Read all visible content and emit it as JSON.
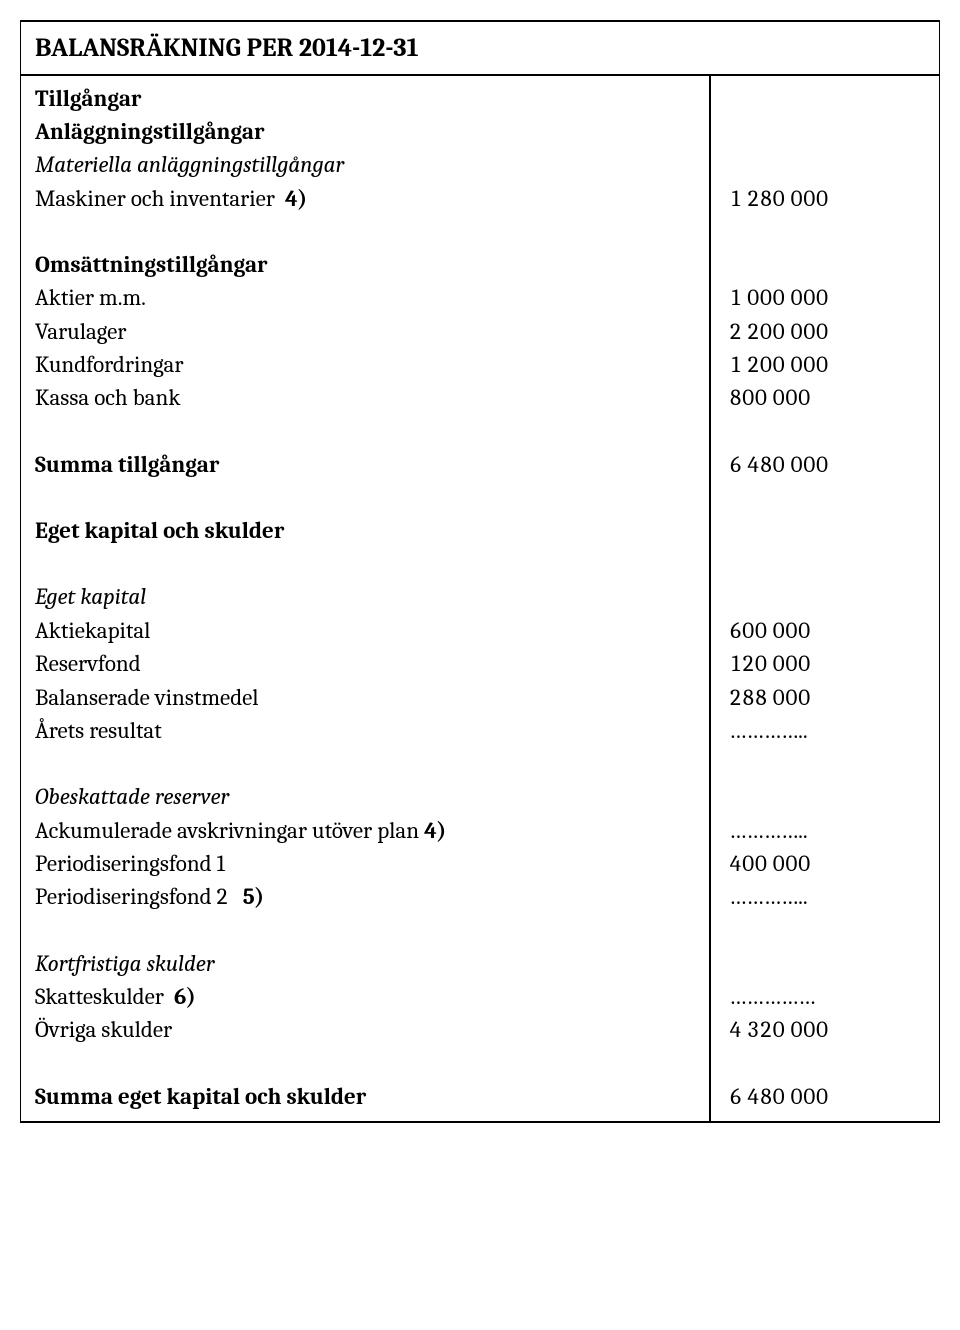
{
  "title": "BALANSRÄKNING PER 2014-12-31",
  "sections": {
    "tillgangar_h": "Tillgångar",
    "anl_h": "Anläggningstillgångar",
    "mat_anl_h": "Materiella anläggningstillgångar",
    "maskiner_label": "Maskiner och inventarier",
    "maskiner_note": "4)",
    "maskiner_val": "1 280 000",
    "oms_h": "Omsättningstillgångar",
    "aktier_label": "Aktier m.m.",
    "aktier_val": "1 000 000",
    "varulager_label": "Varulager",
    "varulager_val": "2 200 000",
    "kundf_label": "Kundfordringar",
    "kundf_val": "1 200 000",
    "kassa_label": "Kassa och bank",
    "kassa_val": "800 000",
    "summa_t_label": "Summa tillgångar",
    "summa_t_val": "6 480 000",
    "ek_sk_h": "Eget kapital och skulder",
    "ek_h": "Eget kapital",
    "aktiekap_label": "Aktiekapital",
    "aktiekap_val": "600 000",
    "reservf_label": "Reservfond",
    "reservf_val": "120 000",
    "balv_label": "Balanserade vinstmedel",
    "balv_val": "288 000",
    "arets_label": "Årets resultat",
    "arets_val": "…………..",
    "obesk_h": "Obeskattade reserver",
    "ack_label": "Ackumulerade avskrivningar utöver plan",
    "ack_note": "4)",
    "ack_val": "…………..",
    "pf1_label": "Periodiseringsfond  1",
    "pf1_val": "400 000",
    "pf2_label": "Periodiseringsfond  2",
    "pf2_note": "5)",
    "pf2_val": "…………..",
    "kfs_h": "Kortfristiga skulder",
    "skattesk_label": "Skatteskulder",
    "skattesk_note": "6)",
    "skattesk_val": "……………",
    "ovr_label": "Övriga skulder",
    "ovr_val": "4 320 000",
    "summa_ek_label": "Summa eget kapital och skulder",
    "summa_ek_val": "6 480 000"
  }
}
